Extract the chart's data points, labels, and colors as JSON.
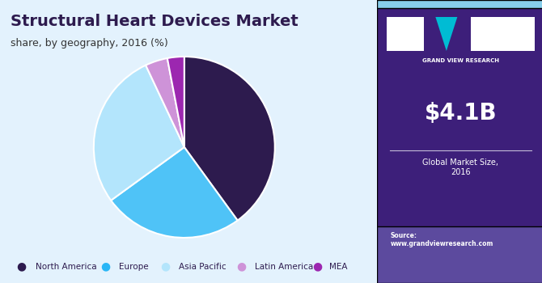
{
  "title": "Structural Heart Devices Market",
  "subtitle": "share, by geography, 2016 (%)",
  "segments": [
    "North America",
    "Europe",
    "Asia Pacific",
    "Latin America",
    "MEA"
  ],
  "values": [
    40.0,
    25.0,
    28.0,
    4.0,
    3.0
  ],
  "colors": [
    "#2D1B4E",
    "#4FC3F7",
    "#B3E5FC",
    "#CE93D8",
    "#9C27B0"
  ],
  "legend_colors": [
    "#2D1B4E",
    "#29B6F6",
    "#B3E5FC",
    "#CE93D8",
    "#9C27B0"
  ],
  "background_color": "#E3F2FD",
  "right_panel_color": "#3D1F7A",
  "bottom_panel_color": "#5C4A9E",
  "top_bar_color": "#87CEEB",
  "market_size": "$4.1B",
  "market_label": "Global Market Size,\n2016",
  "source_text": "Source:\nwww.grandviewresearch.com",
  "title_color": "#2D1B4E",
  "subtitle_color": "#333333",
  "startangle": 90,
  "pie_edge_color": "white"
}
